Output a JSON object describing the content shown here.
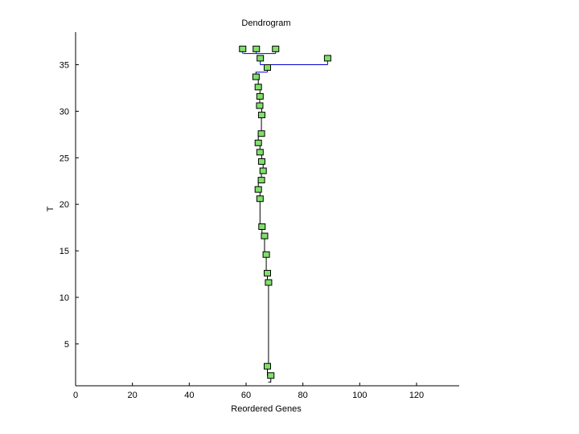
{
  "chart_data": {
    "type": "dendrogram",
    "title": "Dendrogram",
    "xlabel": "Reordered Genes",
    "ylabel": "T",
    "xlim": [
      0,
      135
    ],
    "ylim": [
      0.5,
      38.5
    ],
    "xticks": [
      0,
      20,
      40,
      60,
      80,
      100,
      120
    ],
    "yticks": [
      5,
      10,
      15,
      20,
      25,
      30,
      35
    ],
    "grid": false,
    "colors": {
      "line": "#0000cc",
      "trunk": "#000000",
      "marker_fill": "#7fe06a",
      "marker_edge": "#000000",
      "axis": "#000000"
    },
    "nodes": [
      {
        "x": 58.8,
        "y": 36.7
      },
      {
        "x": 63.6,
        "y": 36.7
      },
      {
        "x": 70.4,
        "y": 36.7
      },
      {
        "x": 65.0,
        "y": 35.7
      },
      {
        "x": 88.7,
        "y": 35.7
      },
      {
        "x": 67.5,
        "y": 34.7
      },
      {
        "x": 63.5,
        "y": 33.7
      },
      {
        "x": 64.3,
        "y": 32.6
      },
      {
        "x": 64.9,
        "y": 31.6
      },
      {
        "x": 64.8,
        "y": 30.6
      },
      {
        "x": 65.5,
        "y": 29.6
      },
      {
        "x": 65.4,
        "y": 27.6
      },
      {
        "x": 64.3,
        "y": 26.6
      },
      {
        "x": 64.9,
        "y": 25.6
      },
      {
        "x": 65.5,
        "y": 24.6
      },
      {
        "x": 66.0,
        "y": 23.6
      },
      {
        "x": 65.4,
        "y": 22.6
      },
      {
        "x": 64.3,
        "y": 21.6
      },
      {
        "x": 64.9,
        "y": 20.6
      },
      {
        "x": 65.6,
        "y": 17.6
      },
      {
        "x": 66.5,
        "y": 16.6
      },
      {
        "x": 67.1,
        "y": 14.6
      },
      {
        "x": 67.5,
        "y": 12.6
      },
      {
        "x": 67.9,
        "y": 11.6
      },
      {
        "x": 67.5,
        "y": 2.6
      },
      {
        "x": 68.7,
        "y": 1.6
      }
    ],
    "links": [
      {
        "x0": 59.0,
        "x1": 70.4,
        "y": 36.2,
        "color": "#0000cc"
      },
      {
        "x0": 65.0,
        "x1": 88.7,
        "y": 35.0,
        "color": "#0000cc"
      },
      {
        "x0": 63.3,
        "x1": 67.5,
        "y": 34.2,
        "color": "#0000cc"
      }
    ],
    "trunk": [
      {
        "x": 63.5,
        "y": 34.2
      },
      {
        "x": 63.5,
        "y": 33.7
      },
      {
        "x": 64.3,
        "y": 33.7
      },
      {
        "x": 64.3,
        "y": 32.6
      },
      {
        "x": 64.9,
        "y": 32.6
      },
      {
        "x": 64.9,
        "y": 31.6
      },
      {
        "x": 64.8,
        "y": 31.6
      },
      {
        "x": 64.8,
        "y": 30.6
      },
      {
        "x": 65.5,
        "y": 30.6
      },
      {
        "x": 65.5,
        "y": 29.6
      },
      {
        "x": 65.4,
        "y": 29.6
      },
      {
        "x": 65.4,
        "y": 27.6
      },
      {
        "x": 64.3,
        "y": 27.6
      },
      {
        "x": 64.3,
        "y": 26.6
      },
      {
        "x": 64.9,
        "y": 26.6
      },
      {
        "x": 64.9,
        "y": 25.6
      },
      {
        "x": 65.5,
        "y": 25.6
      },
      {
        "x": 65.5,
        "y": 24.6
      },
      {
        "x": 66.0,
        "y": 24.6
      },
      {
        "x": 66.0,
        "y": 23.6
      },
      {
        "x": 65.4,
        "y": 23.6
      },
      {
        "x": 65.4,
        "y": 22.6
      },
      {
        "x": 64.3,
        "y": 22.6
      },
      {
        "x": 64.3,
        "y": 21.6
      },
      {
        "x": 64.9,
        "y": 21.6
      },
      {
        "x": 64.9,
        "y": 20.6
      },
      {
        "x": 64.9,
        "y": 17.6
      },
      {
        "x": 65.6,
        "y": 17.6
      },
      {
        "x": 65.6,
        "y": 16.6
      },
      {
        "x": 66.5,
        "y": 16.6
      },
      {
        "x": 66.5,
        "y": 14.6
      },
      {
        "x": 67.1,
        "y": 14.6
      },
      {
        "x": 67.1,
        "y": 12.6
      },
      {
        "x": 67.5,
        "y": 12.6
      },
      {
        "x": 67.5,
        "y": 11.6
      },
      {
        "x": 67.9,
        "y": 11.6
      },
      {
        "x": 67.9,
        "y": 2.6
      },
      {
        "x": 67.5,
        "y": 2.6
      },
      {
        "x": 67.5,
        "y": 1.6
      },
      {
        "x": 68.7,
        "y": 1.6
      },
      {
        "x": 68.7,
        "y": 0.9
      },
      {
        "x": 67.8,
        "y": 0.9
      }
    ]
  }
}
